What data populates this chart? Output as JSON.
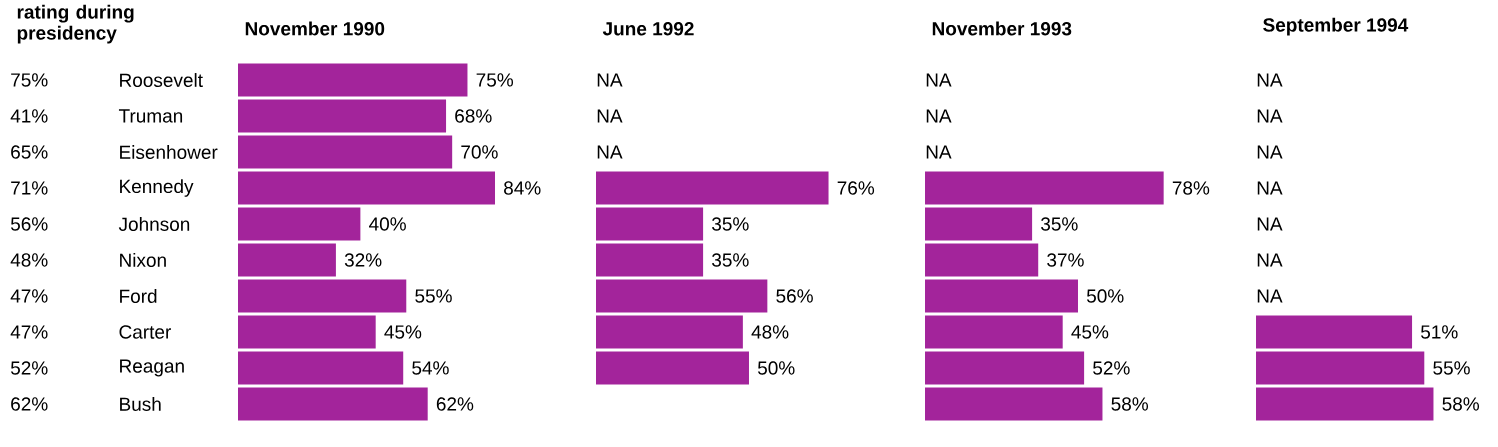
{
  "chart_data": [
    {
      "type": "other",
      "title": "rating during presidency",
      "annotations": [
        "75%",
        "41%",
        "65%",
        "71%",
        "56%",
        "48%",
        "47%",
        "47%",
        "52%",
        "62%"
      ]
    },
    {
      "type": "bar",
      "orientation": "horizontal",
      "title": "November 1990",
      "categories": [
        "Roosevelt",
        "Truman",
        "Eisenhower",
        "Kennedy",
        "Johnson",
        "Nixon",
        "Ford",
        "Carter",
        "Reagan",
        "Bush"
      ],
      "color": "#a3249b",
      "values": [
        75,
        68,
        70,
        84,
        40,
        32,
        55,
        45,
        54,
        62
      ],
      "value_labels": [
        "75%",
        "68%",
        "70%",
        "84%",
        "40%",
        "32%",
        "55%",
        "45%",
        "54%",
        "62%"
      ]
    },
    {
      "type": "bar",
      "orientation": "horizontal",
      "title": "June 1992",
      "categories": [
        null,
        null,
        null,
        null,
        null,
        null,
        null,
        null,
        null,
        null
      ],
      "color": "#a3249b",
      "values": [
        null,
        null,
        null,
        76,
        35,
        35,
        56,
        48,
        50,
        null
      ],
      "value_labels": [
        "NA",
        "NA",
        "NA",
        "76%",
        "35%",
        "35%",
        "56%",
        "48%",
        "50%",
        null
      ]
    },
    {
      "type": "bar",
      "orientation": "horizontal",
      "title": "November 1993",
      "categories": [
        null,
        null,
        null,
        null,
        null,
        null,
        null,
        null,
        null,
        null
      ],
      "color": "#a3249b",
      "values": [
        null,
        null,
        null,
        78,
        35,
        37,
        50,
        45,
        52,
        58
      ],
      "value_labels": [
        "NA",
        "NA",
        "NA",
        "78%",
        "35%",
        "37%",
        "50%",
        "45%",
        "52%",
        "58%"
      ]
    },
    {
      "type": "bar",
      "orientation": "horizontal",
      "title": "September 1994",
      "categories": [
        null,
        null,
        null,
        null,
        null,
        null,
        null,
        null,
        null,
        null
      ],
      "color": "#a3249b",
      "values": [
        null,
        null,
        null,
        null,
        null,
        null,
        null,
        51,
        55,
        58
      ],
      "value_labels": [
        "NA",
        "NA",
        "NA",
        "NA",
        "NA",
        "NA",
        "NA",
        "51%",
        "55%",
        "58%"
      ]
    }
  ]
}
